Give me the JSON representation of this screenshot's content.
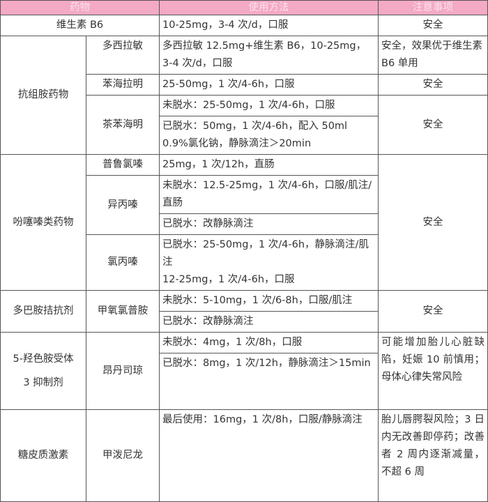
{
  "header": {
    "drug": "药物",
    "usage": "使用方法",
    "notes": "注意事项"
  },
  "rows": {
    "b6": {
      "name": "维生素 B6",
      "usage": "10-25mg，3-4 次/d，口服",
      "note": "安全"
    },
    "antihistamine": {
      "category": "抗组胺药物",
      "doxylamine": {
        "name": "多西拉敏",
        "usage": "多西拉敏 12.5mg+维生素 B6，10-25mg，3-4 次/d，口服",
        "note": "安全，效果优于维生素 B6 单用"
      },
      "diphenhydramine": {
        "name": "苯海拉明",
        "usage": "25-50mg，1 次/4-6h，口服",
        "note": "安全"
      },
      "dimenhydrinate": {
        "name": "茶苯海明",
        "usage_a": "未脱水：25-50mg，1 次/4-6h，口服",
        "usage_b": "已脱水：50mg，1 次/4-6h，配入 50ml 0.9%氯化钠，静脉滴注＞20min",
        "note": "安全"
      }
    },
    "phenothiazine": {
      "category": "吩噻嗪类药物",
      "note": "安全",
      "prochlorperazine": {
        "name": "普鲁氯嗪",
        "usage": "25mg，1 次/12h，直肠"
      },
      "promethazine": {
        "name": "异丙嗪",
        "usage_a": "未脱水：12.5-25mg，1 次/4-6h，口服/肌注/直肠",
        "usage_b": "已脱水：改静脉滴注"
      },
      "chlorpromazine": {
        "name": "氯丙嗪",
        "usage_a": "已脱水：25-50mg，1 次/4-6h，静脉滴注/肌注",
        "usage_b": "12-25mg，1 次/4-6h，口服"
      }
    },
    "dopamine": {
      "category": "多巴胺拮抗剂",
      "name": "甲氧氯普胺",
      "usage_a": "未脱水：5-10mg，1 次/6-8h，口服/肌注",
      "usage_b": "已脱水：改静脉滴注",
      "note": "安全"
    },
    "ht3": {
      "category_line1": "5-羟色胺受体",
      "category_line2": "3 抑制剂",
      "name": "昂丹司琼",
      "usage_a": "未脱水：4mg，1 次/8h，口服",
      "usage_b": "已脱水：8mg，1 次/12h，静脉滴注＞15min",
      "note": "可能增加胎儿心脏缺陷，妊娠 10 前慎用；母体心律失常风险"
    },
    "steroid": {
      "category": "糖皮质激素",
      "name": "甲泼尼龙",
      "usage": "最后使用：16mg，1 次/8h，口服/静脉滴注",
      "note": "胎儿唇腭裂风险；3 日内无改善即停药；改善者 2 周内逐渐减量，不超 6 周"
    }
  },
  "colors": {
    "header_bg": "#f4a9c4",
    "border": "#555555"
  }
}
